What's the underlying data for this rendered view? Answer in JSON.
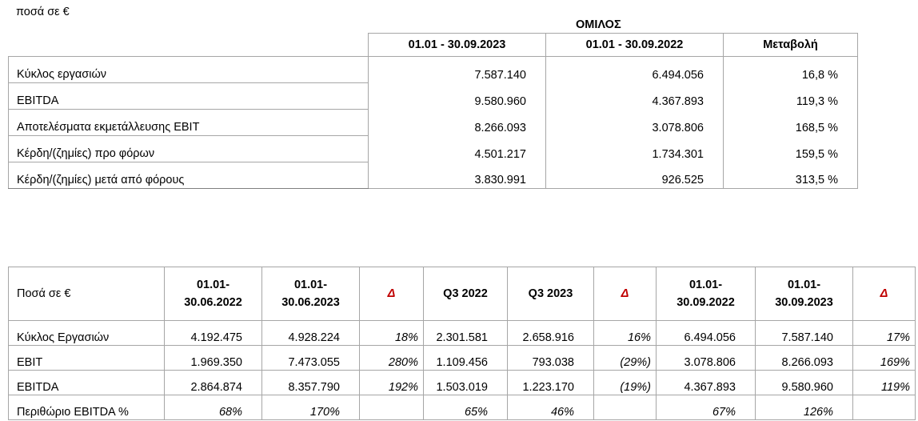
{
  "unit_label": "ποσά σε €",
  "group_title": "ΟΜΙΛΟΣ",
  "table1": {
    "headers": [
      "01.01 - 30.09.2023",
      "01.01 - 30.09.2022",
      "Μεταβολή"
    ],
    "rows": [
      {
        "label": "Κύκλος εργασιών",
        "v2023": "7.587.140",
        "v2022": "6.494.056",
        "change": "16,8 %"
      },
      {
        "label": "EBITDA",
        "v2023": "9.580.960",
        "v2022": "4.367.893",
        "change": "119,3 %"
      },
      {
        "label": "Αποτελέσματα εκμετάλλευσης EBIT",
        "v2023": "8.266.093",
        "v2022": "3.078.806",
        "change": "168,5 %"
      },
      {
        "label": "Κέρδη/(ζημίες) προ φόρων",
        "v2023": "4.501.217",
        "v2022": "1.734.301",
        "change": "159,5 %"
      },
      {
        "label": "Κέρδη/(ζημίες) μετά από φόρους",
        "v2023": "3.830.991",
        "v2022": "926.525",
        "change": "313,5 %"
      }
    ]
  },
  "table2": {
    "headers": {
      "label": "Ποσά σε €",
      "h1_line1": "01.01-",
      "h1_line2": "30.06.2022",
      "h2_line1": "01.01-",
      "h2_line2": "30.06.2023",
      "d1": "Δ",
      "q3_2022": "Q3 2022",
      "q3_2023": "Q3 2023",
      "d2": "Δ",
      "h3_line1": "01.01-",
      "h3_line2": "30.09.2022",
      "h4_line1": "01.01-",
      "h4_line2": "30.09.2023",
      "d3": "Δ"
    },
    "rows": [
      {
        "label": "Κύκλος Εργασιών",
        "c1": "4.192.475",
        "c2": "4.928.224",
        "d1": "18%",
        "c3": "2.301.581",
        "c4": "2.658.916",
        "d2": "16%",
        "c5": "6.494.056",
        "c6": "7.587.140",
        "d3": "17%"
      },
      {
        "label": "EBIT",
        "c1": "1.969.350",
        "c2": "7.473.055",
        "d1": "280%",
        "c3": "1.109.456",
        "c4": "793.038",
        "d2": "(29%)",
        "c5": "3.078.806",
        "c6": "8.266.093",
        "d3": "169%"
      },
      {
        "label": "EBITDA",
        "c1": "2.864.874",
        "c2": "8.357.790",
        "d1": "192%",
        "c3": "1.503.019",
        "c4": "1.223.170",
        "d2": "(19%)",
        "c5": "4.367.893",
        "c6": "9.580.960",
        "d3": "119%"
      },
      {
        "label": "Περιθώριο EBITDA %",
        "c1": "68%",
        "c2": "170%",
        "d1": "",
        "c3": "65%",
        "c4": "46%",
        "d2": "",
        "c5": "67%",
        "c6": "126%",
        "d3": ""
      }
    ]
  },
  "colors": {
    "delta_header": "#c00000",
    "border": "#a6a6a6"
  }
}
